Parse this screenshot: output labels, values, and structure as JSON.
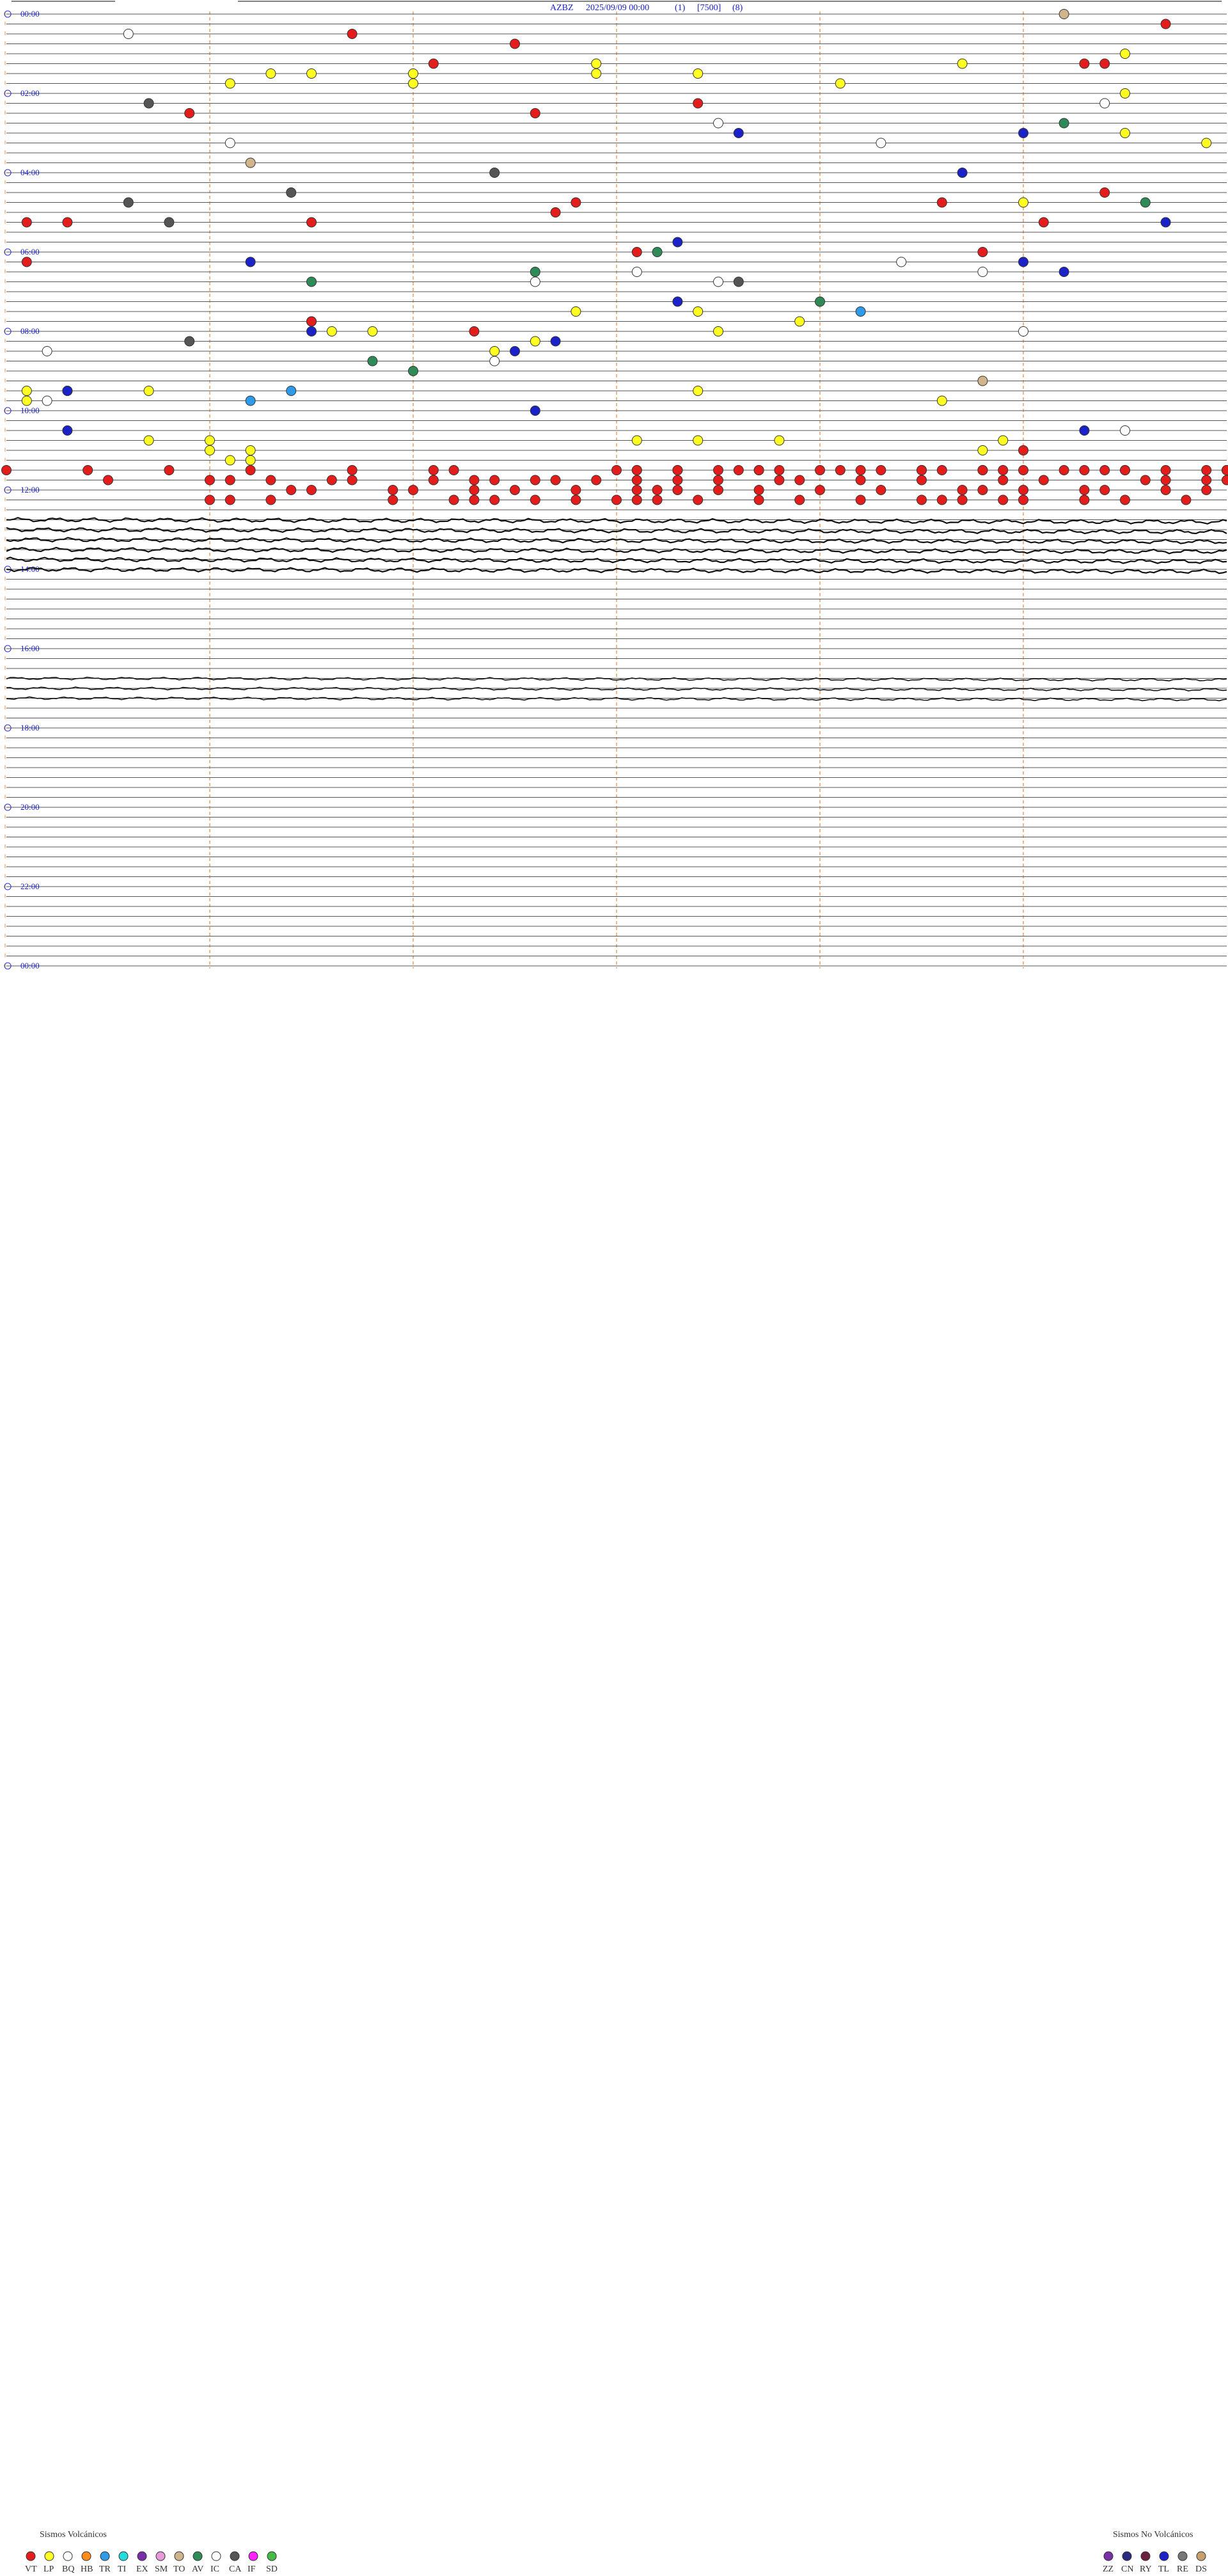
{
  "header": {
    "station": "AZBZ",
    "datetime": "2025/09/09 00:00",
    "channel": "(1)",
    "gain": "[7500]",
    "filter": "(8)"
  },
  "chart_data": {
    "type": "scatter",
    "hour_labels": [
      "00:00",
      "02:00",
      "04:00",
      "06:00",
      "08:00",
      "10:00",
      "12:00",
      "14:00",
      "16:00",
      "18:00",
      "20:00",
      "22:00",
      "00:00"
    ],
    "colors": {
      "VT": "#e31c1c",
      "LP": "#ffff22",
      "BQ": "#ffffff",
      "HB": "#ff8c1a",
      "TR": "#2e9be8",
      "TI": "#22dddd",
      "EX": "#7a2ea8",
      "SM": "#e89ad8",
      "TO": "#d2b48c",
      "AV": "#2e8b57",
      "IC": "#ffffff",
      "CA": "#555555",
      "IF": "#ff22ff",
      "SD": "#44bb44",
      "ZZ": "#7a2ea8",
      "CN": "#2a2a80",
      "RY": "#6e2040",
      "TL": "#1a22c8",
      "RE": "#777777",
      "DS": "#c8a070"
    },
    "events": [
      {
        "row": 0,
        "min": 52,
        "type": "TO"
      },
      {
        "row": 1,
        "min": 57,
        "type": "VT"
      },
      {
        "row": 2,
        "min": 6,
        "type": "BQ"
      },
      {
        "row": 2,
        "min": 17,
        "type": "VT"
      },
      {
        "row": 3,
        "min": 25,
        "type": "VT"
      },
      {
        "row": 4,
        "min": 55,
        "type": "LP"
      },
      {
        "row": 5,
        "min": 21,
        "type": "VT"
      },
      {
        "row": 5,
        "min": 29,
        "type": "LP"
      },
      {
        "row": 5,
        "min": 47,
        "type": "LP"
      },
      {
        "row": 5,
        "min": 53,
        "type": "VT"
      },
      {
        "row": 5,
        "min": 54,
        "type": "VT"
      },
      {
        "row": 6,
        "min": 13,
        "type": "LP"
      },
      {
        "row": 6,
        "min": 15,
        "type": "LP"
      },
      {
        "row": 6,
        "min": 20,
        "type": "LP"
      },
      {
        "row": 6,
        "min": 29,
        "type": "LP"
      },
      {
        "row": 6,
        "min": 34,
        "type": "LP"
      },
      {
        "row": 7,
        "min": 11,
        "type": "LP"
      },
      {
        "row": 7,
        "min": 20,
        "type": "LP"
      },
      {
        "row": 7,
        "min": 41,
        "type": "LP"
      },
      {
        "row": 8,
        "min": 55,
        "type": "LP"
      },
      {
        "row": 9,
        "min": 7,
        "type": "CA"
      },
      {
        "row": 9,
        "min": 34,
        "type": "VT"
      },
      {
        "row": 9,
        "min": 54,
        "type": "BQ"
      },
      {
        "row": 10,
        "min": 9,
        "type": "VT"
      },
      {
        "row": 10,
        "min": 26,
        "type": "VT"
      },
      {
        "row": 11,
        "min": 35,
        "type": "BQ"
      },
      {
        "row": 11,
        "min": 52,
        "type": "AV"
      },
      {
        "row": 12,
        "min": 36,
        "type": "TL"
      },
      {
        "row": 12,
        "min": 50,
        "type": "TL"
      },
      {
        "row": 12,
        "min": 55,
        "type": "LP"
      },
      {
        "row": 13,
        "min": 11,
        "type": "BQ"
      },
      {
        "row": 13,
        "min": 43,
        "type": "BQ"
      },
      {
        "row": 13,
        "min": 59,
        "type": "LP"
      },
      {
        "row": 15,
        "min": 12,
        "type": "TO"
      },
      {
        "row": 16,
        "min": 24,
        "type": "CA"
      },
      {
        "row": 16,
        "min": 47,
        "type": "TL"
      },
      {
        "row": 18,
        "min": 14,
        "type": "CA"
      },
      {
        "row": 18,
        "min": 54,
        "type": "VT"
      },
      {
        "row": 19,
        "min": 6,
        "type": "CA"
      },
      {
        "row": 19,
        "min": 28,
        "type": "VT"
      },
      {
        "row": 19,
        "min": 46,
        "type": "VT"
      },
      {
        "row": 19,
        "min": 50,
        "type": "LP"
      },
      {
        "row": 19,
        "min": 56,
        "type": "AV"
      },
      {
        "row": 20,
        "min": 27,
        "type": "VT"
      },
      {
        "row": 21,
        "min": 8,
        "type": "CA"
      },
      {
        "row": 21,
        "min": 1,
        "type": "VT"
      },
      {
        "row": 21,
        "min": 3,
        "type": "VT"
      },
      {
        "row": 21,
        "min": 15,
        "type": "VT"
      },
      {
        "row": 21,
        "min": 51,
        "type": "VT"
      },
      {
        "row": 21,
        "min": 57,
        "type": "TL"
      },
      {
        "row": 23,
        "min": 33,
        "type": "TL"
      },
      {
        "row": 24,
        "min": 31,
        "type": "VT"
      },
      {
        "row": 24,
        "min": 32,
        "type": "AV"
      },
      {
        "row": 24,
        "min": 48,
        "type": "VT"
      },
      {
        "row": 25,
        "min": 12,
        "type": "TL"
      },
      {
        "row": 25,
        "min": 1,
        "type": "VT"
      },
      {
        "row": 25,
        "min": 44,
        "type": "BQ"
      },
      {
        "row": 25,
        "min": 50,
        "type": "TL"
      },
      {
        "row": 26,
        "min": 26,
        "type": "AV"
      },
      {
        "row": 26,
        "min": 31,
        "type": "BQ"
      },
      {
        "row": 26,
        "min": 48,
        "type": "BQ"
      },
      {
        "row": 26,
        "min": 52,
        "type": "TL"
      },
      {
        "row": 27,
        "min": 15,
        "type": "AV"
      },
      {
        "row": 27,
        "min": 26,
        "type": "BQ"
      },
      {
        "row": 27,
        "min": 35,
        "type": "BQ"
      },
      {
        "row": 27,
        "min": 36,
        "type": "CA"
      },
      {
        "row": 29,
        "min": 33,
        "type": "TL"
      },
      {
        "row": 29,
        "min": 40,
        "type": "AV"
      },
      {
        "row": 30,
        "min": 28,
        "type": "LP"
      },
      {
        "row": 30,
        "min": 42,
        "type": "TR"
      },
      {
        "row": 30,
        "min": 34,
        "type": "LP"
      },
      {
        "row": 31,
        "min": 15,
        "type": "BQ"
      },
      {
        "row": 31,
        "min": 15,
        "type": "VT"
      },
      {
        "row": 31,
        "min": 39,
        "type": "LP"
      },
      {
        "row": 32,
        "min": 15,
        "type": "TL"
      },
      {
        "row": 32,
        "min": 16,
        "type": "LP"
      },
      {
        "row": 32,
        "min": 18,
        "type": "LP"
      },
      {
        "row": 32,
        "min": 23,
        "type": "VT"
      },
      {
        "row": 32,
        "min": 35,
        "type": "LP"
      },
      {
        "row": 32,
        "min": 50,
        "type": "BQ"
      },
      {
        "row": 33,
        "min": 26,
        "type": "LP"
      },
      {
        "row": 33,
        "min": 9,
        "type": "CA"
      },
      {
        "row": 33,
        "min": 27,
        "type": "TL"
      },
      {
        "row": 34,
        "min": 2,
        "type": "BQ"
      },
      {
        "row": 34,
        "min": 24,
        "type": "LP"
      },
      {
        "row": 34,
        "min": 25,
        "type": "TL"
      },
      {
        "row": 35,
        "min": 18,
        "type": "AV"
      },
      {
        "row": 35,
        "min": 24,
        "type": "BQ"
      },
      {
        "row": 36,
        "min": 20,
        "type": "AV"
      },
      {
        "row": 37,
        "min": 48,
        "type": "TO"
      },
      {
        "row": 38,
        "min": 1,
        "type": "LP"
      },
      {
        "row": 38,
        "min": 3,
        "type": "LP"
      },
      {
        "row": 38,
        "min": 3,
        "type": "TL"
      },
      {
        "row": 38,
        "min": 7,
        "type": "LP"
      },
      {
        "row": 38,
        "min": 14,
        "type": "TR"
      },
      {
        "row": 38,
        "min": 34,
        "type": "LP"
      },
      {
        "row": 39,
        "min": 1,
        "type": "LP"
      },
      {
        "row": 39,
        "min": 2,
        "type": "BQ"
      },
      {
        "row": 39,
        "min": 12,
        "type": "TR"
      },
      {
        "row": 39,
        "min": 46,
        "type": "LP"
      },
      {
        "row": 40,
        "min": 26,
        "type": "TL"
      },
      {
        "row": 42,
        "min": 3,
        "type": "TL"
      },
      {
        "row": 42,
        "min": 53,
        "type": "TL"
      },
      {
        "row": 42,
        "min": 55,
        "type": "BQ"
      },
      {
        "row": 43,
        "min": 7,
        "type": "LP"
      },
      {
        "row": 43,
        "min": 10,
        "type": "LP"
      },
      {
        "row": 43,
        "min": 31,
        "type": "LP"
      },
      {
        "row": 43,
        "min": 34,
        "type": "LP"
      },
      {
        "row": 43,
        "min": 38,
        "type": "LP"
      },
      {
        "row": 43,
        "min": 49,
        "type": "LP"
      },
      {
        "row": 44,
        "min": 10,
        "type": "LP"
      },
      {
        "row": 44,
        "min": 12,
        "type": "LP"
      },
      {
        "row": 44,
        "min": 48,
        "type": "LP"
      },
      {
        "row": 44,
        "min": 50,
        "type": "VT"
      },
      {
        "row": 45,
        "min": 11,
        "type": "LP"
      },
      {
        "row": 45,
        "min": 12,
        "type": "LP"
      }
    ],
    "vt_swarm": [
      {
        "row": 46,
        "mins": [
          0,
          4,
          8,
          12,
          17,
          21,
          22,
          31,
          33,
          35,
          37,
          40,
          41,
          43,
          45,
          48,
          52,
          53,
          55,
          57,
          60
        ]
      },
      {
        "row": 46,
        "mins": [
          30,
          31,
          33,
          36,
          37,
          38,
          42,
          45,
          46,
          48,
          49,
          50,
          54,
          55,
          59,
          60
        ]
      },
      {
        "row": 47,
        "mins": [
          5,
          10,
          11,
          13,
          16,
          17,
          21,
          23,
          24,
          26,
          27,
          29,
          31,
          33,
          35,
          38,
          39,
          42,
          45,
          49,
          51,
          56,
          57,
          59,
          60
        ]
      },
      {
        "row": 48,
        "mins": [
          14,
          15,
          19,
          20,
          23,
          25,
          28,
          31,
          32,
          33,
          35,
          37,
          40,
          43,
          47,
          48,
          50,
          53,
          54,
          57,
          59
        ]
      },
      {
        "row": 49,
        "mins": [
          10,
          11,
          13,
          19,
          22,
          23,
          24,
          26,
          28,
          30,
          31,
          32,
          34,
          37,
          39,
          42,
          45,
          46,
          47,
          49,
          50,
          53,
          55,
          58
        ]
      }
    ]
  },
  "legend": {
    "volcanic_title": "Sismos Volcánicos",
    "volcanic_codes": [
      "VT",
      "LP",
      "BQ",
      "HB",
      "TR",
      "TI",
      "EX",
      "SM",
      "TO",
      "AV",
      "IC",
      "CA",
      "IF",
      "SD"
    ],
    "nonvolcanic_title": "Sismos No Volcánicos",
    "nonvolcanic_codes": [
      "ZZ",
      "CN",
      "RY",
      "TL",
      "RE",
      "DS"
    ]
  }
}
